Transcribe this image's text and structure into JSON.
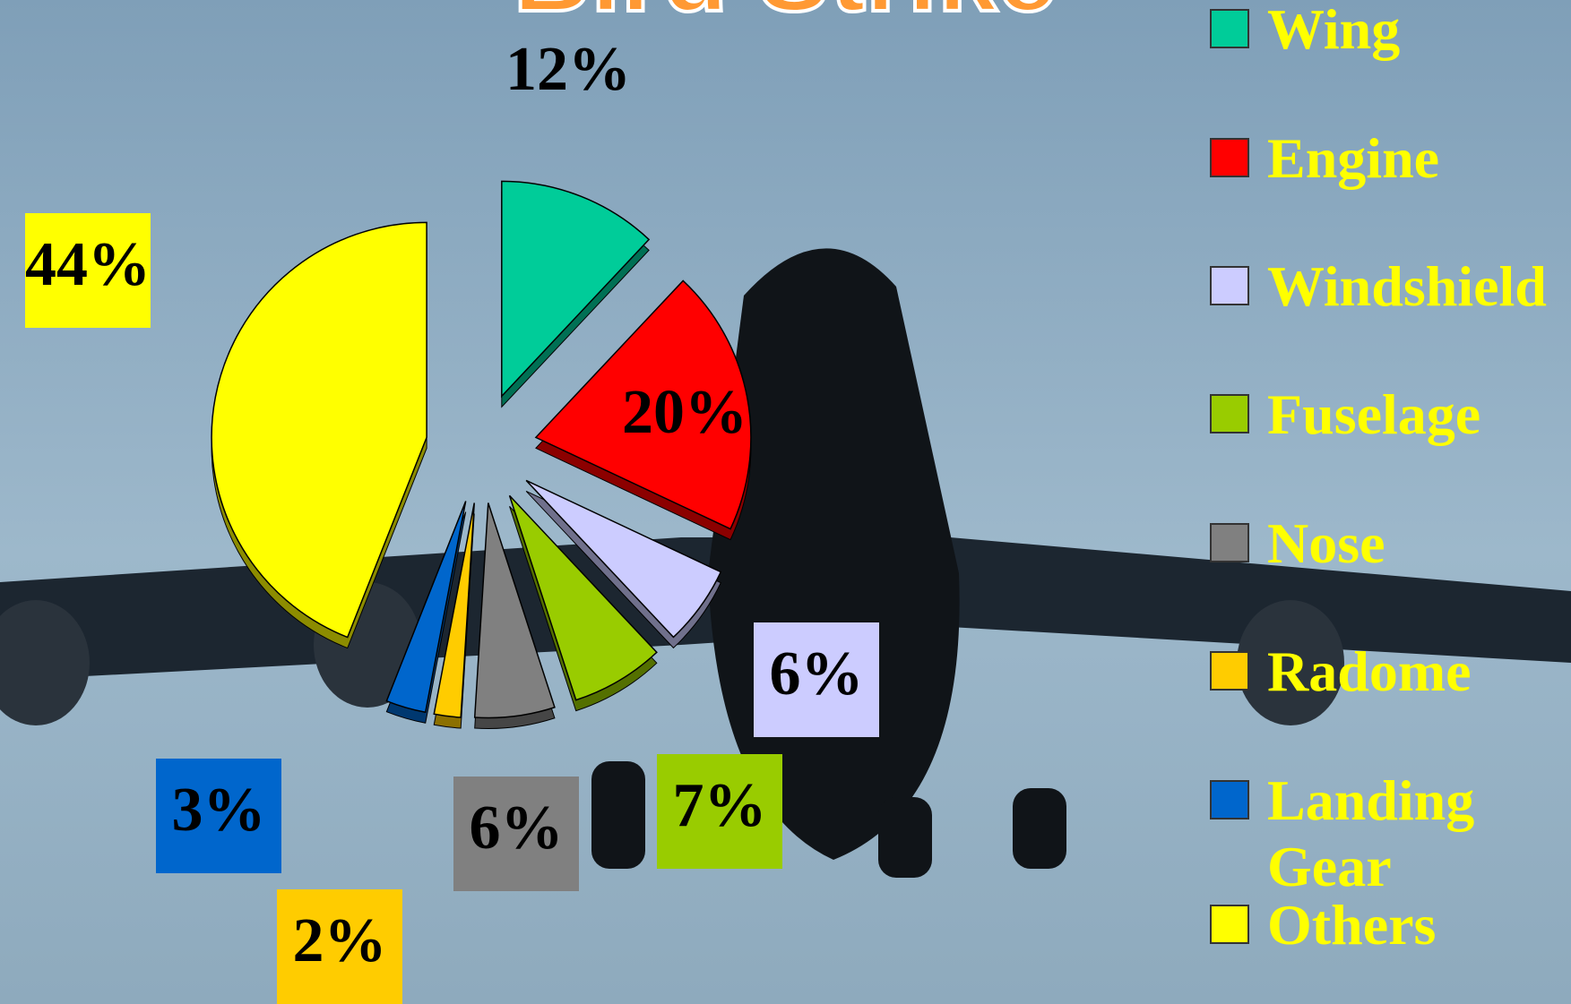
{
  "chart_data": {
    "type": "pie",
    "title": "Bird Strike",
    "categories": [
      "Wing",
      "Engine",
      "Windshield",
      "Fuselage",
      "Nose",
      "Radome",
      "Landing Gear",
      "Others"
    ],
    "values": [
      12,
      20,
      6,
      7,
      6,
      2,
      3,
      44
    ],
    "value_labels": [
      "12%",
      "20%",
      "6%",
      "7%",
      "6%",
      "2%",
      "3%",
      "44%"
    ],
    "colors": [
      "#00cc99",
      "#ff0000",
      "#ccccff",
      "#99cc00",
      "#808080",
      "#ffcc00",
      "#0066cc",
      "#ffff00"
    ],
    "legend": "right"
  }
}
